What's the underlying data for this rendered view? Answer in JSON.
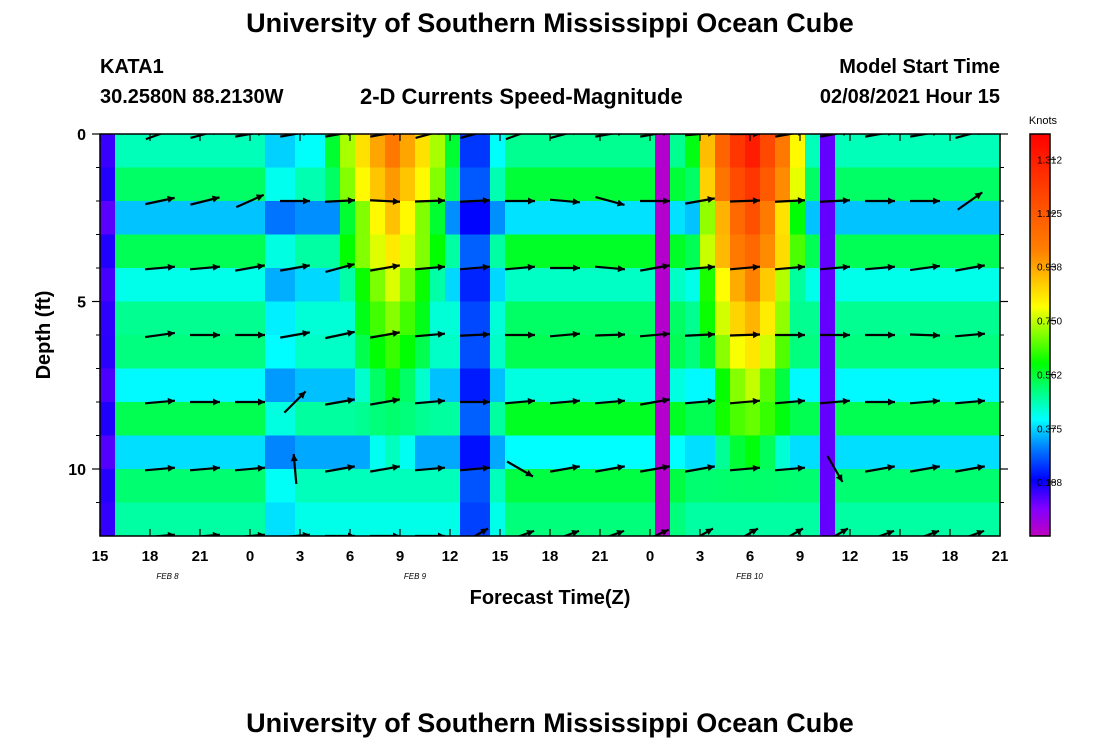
{
  "header": {
    "title": "University of Southern Mississippi Ocean Cube",
    "station": "KATA1",
    "coordinates": "30.2580N 88.2130W",
    "subtitle": "2-D Currents Speed-Magnitude",
    "model_start_label": "Model Start Time",
    "model_start_value": "02/08/2021 Hour 15"
  },
  "footer": {
    "title": "University of Southern Mississippi Ocean Cube"
  },
  "chart_data": {
    "type": "heatmap",
    "title": "2-D Currents Speed-Magnitude",
    "xlabel": "Forecast Time(Z)",
    "ylabel": "Depth (ft)",
    "colorbar_label": "Knots",
    "x_hours_from_start": [
      0,
      60
    ],
    "x_tick_labels": [
      "15",
      "18",
      "21",
      "0",
      "3",
      "6",
      "9",
      "12",
      "15",
      "18",
      "21",
      "0",
      "3",
      "6",
      "9",
      "12",
      "15",
      "18",
      "21"
    ],
    "date_labels": [
      {
        "label": "FEB 8",
        "hour": 4.5
      },
      {
        "label": "FEB 9",
        "hour": 21
      },
      {
        "label": "FEB 10",
        "hour": 43.3
      }
    ],
    "ylim": [
      0,
      12
    ],
    "y_major_ticks": [
      0,
      5,
      10
    ],
    "y_minor_ticks": [
      1,
      2,
      3,
      4,
      6,
      7,
      8,
      9,
      11
    ],
    "colorbar_ticks": [
      0.188,
      0.375,
      0.562,
      0.75,
      0.938,
      1.125,
      1.312
    ],
    "colorbar_tick_labels": [
      "0.188",
      "0.375",
      "0.562",
      "0.750",
      "0.938",
      "1.125",
      "1.312"
    ],
    "colorbar_range": [
      0.0,
      1.4
    ],
    "depth_levels_ft": [
      0,
      1,
      2,
      3,
      4,
      5,
      6,
      7,
      8,
      9,
      10,
      11,
      12
    ],
    "speed_pulses_knots": [
      {
        "center_hour": 19.5,
        "peak_at_surface": 1.05,
        "peak_at_bottom": 0.3,
        "surface_width_hours": 4.5,
        "bottom_width_hours": 1.2
      },
      {
        "center_hour": 43.3,
        "peak_at_surface": 1.38,
        "peak_at_bottom": 0.4,
        "surface_width_hours": 4.0,
        "bottom_width_hours": 2.0
      }
    ],
    "background_speed_knots": [
      {
        "start_hour": 0,
        "end_hour": 11,
        "value": 0.45
      },
      {
        "start_hour": 11,
        "end_hour": 27,
        "value": 0.4
      },
      {
        "start_hour": 27,
        "end_hour": 39,
        "value": 0.48
      },
      {
        "start_hour": 39,
        "end_hour": 60,
        "value": 0.45
      }
    ],
    "low_speed_bands_knots": [
      {
        "center_hour": 0.7,
        "width_hours": 0.8,
        "value": 0.05
      },
      {
        "center_hour": 12.0,
        "width_hours": 0.6,
        "value": 0.18
      },
      {
        "center_hour": 25.0,
        "width_hours": 1.0,
        "value": 0.08
      },
      {
        "center_hour": 37.5,
        "width_hours": 0.5,
        "value": 0.02
      },
      {
        "center_hour": 48.5,
        "width_hours": 0.5,
        "value": 0.12
      }
    ],
    "vector_rows_ft": [
      0,
      2,
      4,
      6,
      8,
      10,
      12
    ],
    "vector_columns_hours": [
      4,
      7,
      10,
      13,
      16,
      19,
      22,
      25,
      28,
      31,
      34,
      37,
      40,
      43,
      46,
      49,
      52,
      55,
      58
    ],
    "vector_directions_deg": [
      [
        20,
        15,
        10,
        10,
        10,
        10,
        15,
        15,
        20,
        15,
        10,
        10,
        5,
        0,
        10,
        10,
        10,
        10,
        15
      ],
      [
        12,
        14,
        24,
        0,
        3,
        -3,
        2,
        3,
        0,
        -5,
        -15,
        0,
        10,
        2,
        3,
        3,
        0,
        0,
        35
      ],
      [
        5,
        5,
        10,
        10,
        15,
        10,
        5,
        5,
        5,
        0,
        -5,
        10,
        5,
        5,
        5,
        5,
        5,
        8,
        10
      ],
      [
        8,
        0,
        0,
        10,
        12,
        10,
        5,
        3,
        0,
        5,
        2,
        5,
        3,
        2,
        0,
        0,
        0,
        -2,
        5
      ],
      [
        5,
        0,
        0,
        45,
        10,
        10,
        5,
        0,
        5,
        5,
        5,
        10,
        5,
        5,
        5,
        5,
        0,
        5,
        5
      ],
      [
        5,
        5,
        5,
        95,
        10,
        10,
        5,
        5,
        -30,
        10,
        10,
        10,
        10,
        5,
        5,
        -60,
        10,
        10,
        10
      ],
      [
        5,
        5,
        5,
        5,
        0,
        0,
        0,
        30,
        20,
        20,
        20,
        25,
        30,
        30,
        30,
        30,
        20,
        20,
        20
      ]
    ]
  }
}
